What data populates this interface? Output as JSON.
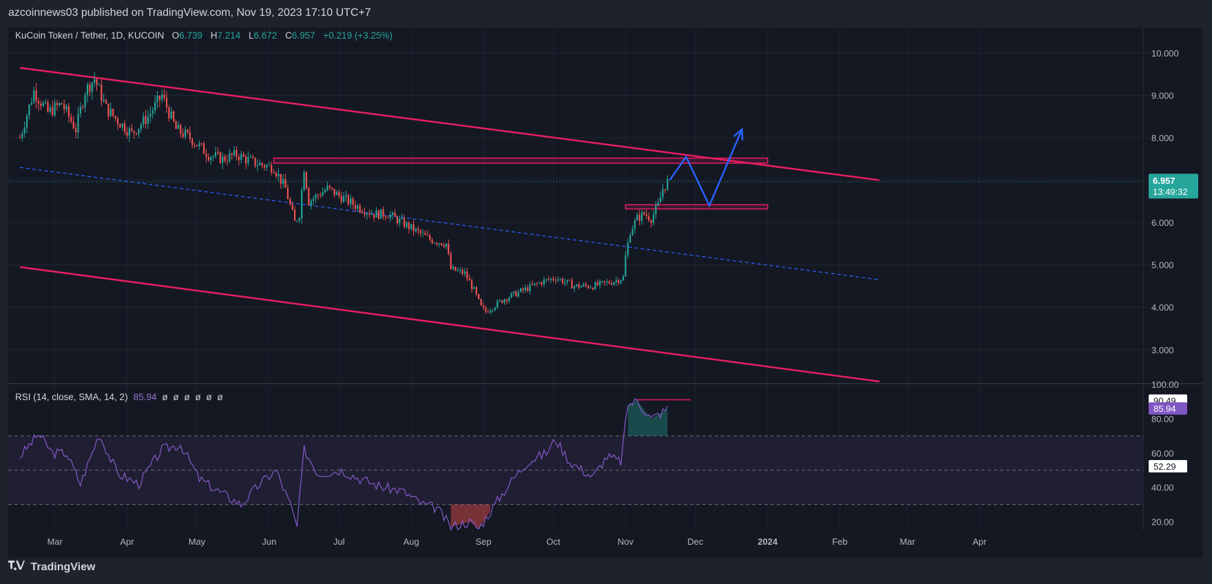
{
  "header": {
    "publisher": "azcoinnews03 published on TradingView.com, Nov 19, 2023 17:10 UTC+7"
  },
  "legend": {
    "symbol": "KuCoin Token / Tether, 1D, KUCOIN",
    "open_label": "O",
    "open": "6.739",
    "high_label": "H",
    "high": "7.214",
    "low_label": "L",
    "low": "6.672",
    "close_label": "C",
    "close": "6.957",
    "change": "+0.219 (+3.25%)"
  },
  "price_badge": {
    "price": "6.957",
    "countdown": "13:49:32"
  },
  "rsi": {
    "label": "RSI (14, close, SMA, 14, 2)",
    "value": "85.94",
    "nulls": "ø ø ø ø ø ø",
    "badges": [
      "90.49",
      "85.94",
      "52.29"
    ]
  },
  "footer": {
    "brand": "TradingView",
    "logo": "tradingview-logo-icon"
  },
  "colors": {
    "background": "#141823",
    "up": "#26a69a",
    "down": "#ef5350",
    "channel": "#e91e63",
    "mid_line": "#2962ff",
    "projection": "#2962ff",
    "rsi_line": "#7e57c2",
    "rsi_band": "#2a2440"
  },
  "chart_data": {
    "type": "candlestick",
    "price_axis": {
      "ticks": [
        "10.000",
        "9.000",
        "8.000",
        "7.000",
        "6.000",
        "5.000",
        "4.000",
        "3.000"
      ],
      "ylim": [
        2.2,
        10.6
      ]
    },
    "rsi_axis": {
      "ticks": [
        "100.00",
        "80.00",
        "60.00",
        "40.00",
        "20.00"
      ],
      "levels": [
        70,
        50,
        30
      ],
      "ylim": [
        15,
        100
      ]
    },
    "x_labels": [
      "Mar",
      "Apr",
      "May",
      "Jun",
      "Jul",
      "Aug",
      "Sep",
      "Oct",
      "Nov",
      "Dec",
      "2024",
      "Feb",
      "Mar",
      "Apr"
    ],
    "price_path": [
      [
        "2023-02-14",
        8.0
      ],
      [
        "2023-02-20",
        9.1
      ],
      [
        "2023-02-26",
        8.6
      ],
      [
        "2023-03-04",
        8.8
      ],
      [
        "2023-03-10",
        8.2
      ],
      [
        "2023-03-14",
        9.1
      ],
      [
        "2023-03-18",
        9.4
      ],
      [
        "2023-03-23",
        8.7
      ],
      [
        "2023-03-28",
        8.4
      ],
      [
        "2023-04-03",
        8.1
      ],
      [
        "2023-04-10",
        8.5
      ],
      [
        "2023-04-16",
        9.0
      ],
      [
        "2023-04-22",
        8.2
      ],
      [
        "2023-04-28",
        8.0
      ],
      [
        "2023-05-06",
        7.6
      ],
      [
        "2023-05-12",
        7.5
      ],
      [
        "2023-05-18",
        7.6
      ],
      [
        "2023-05-26",
        7.4
      ],
      [
        "2023-06-03",
        7.3
      ],
      [
        "2023-06-08",
        6.8
      ],
      [
        "2023-06-12",
        6.0
      ],
      [
        "2023-06-14",
        6.2
      ],
      [
        "2023-06-16",
        7.3
      ],
      [
        "2023-06-18",
        6.5
      ],
      [
        "2023-06-26",
        6.8
      ],
      [
        "2023-07-02",
        6.6
      ],
      [
        "2023-07-08",
        6.4
      ],
      [
        "2023-07-16",
        6.2
      ],
      [
        "2023-07-22",
        6.2
      ],
      [
        "2023-07-28",
        6.0
      ],
      [
        "2023-08-03",
        5.8
      ],
      [
        "2023-08-09",
        5.6
      ],
      [
        "2023-08-16",
        5.5
      ],
      [
        "2023-08-18",
        4.9
      ],
      [
        "2023-08-24",
        4.8
      ],
      [
        "2023-08-28",
        4.4
      ],
      [
        "2023-08-31",
        4.0
      ],
      [
        "2023-09-02",
        3.9
      ],
      [
        "2023-09-10",
        4.2
      ],
      [
        "2023-09-18",
        4.4
      ],
      [
        "2023-09-26",
        4.6
      ],
      [
        "2023-10-02",
        4.7
      ],
      [
        "2023-10-10",
        4.5
      ],
      [
        "2023-10-18",
        4.5
      ],
      [
        "2023-10-26",
        4.6
      ],
      [
        "2023-10-31",
        4.7
      ],
      [
        "2023-11-01",
        5.2
      ],
      [
        "2023-11-03",
        5.8
      ],
      [
        "2023-11-06",
        6.1
      ],
      [
        "2023-11-09",
        6.2
      ],
      [
        "2023-11-12",
        6.1
      ],
      [
        "2023-11-15",
        6.4
      ],
      [
        "2023-11-17",
        6.8
      ],
      [
        "2023-11-19",
        6.957
      ]
    ],
    "channel_upper": [
      [
        "2023-02-14",
        9.65
      ],
      [
        "2024-02-18",
        7.0
      ]
    ],
    "channel_lower": [
      [
        "2023-02-14",
        4.95
      ],
      [
        "2024-02-18",
        2.25
      ]
    ],
    "channel_mid": [
      [
        "2023-02-14",
        7.3
      ],
      [
        "2024-02-18",
        4.65
      ]
    ],
    "resistance_zone": {
      "x": [
        "2023-06-03",
        "2024-01-01"
      ],
      "y": [
        7.4,
        7.52
      ]
    },
    "support_zone": {
      "x": [
        "2023-11-01",
        "2024-01-01"
      ],
      "y": [
        6.32,
        6.42
      ]
    },
    "projection": [
      [
        "2023-11-20",
        7.0
      ],
      [
        "2023-11-27",
        7.55
      ],
      [
        "2023-12-07",
        6.4
      ],
      [
        "2023-12-21",
        8.2
      ]
    ],
    "rsi_path": [
      [
        "2023-02-14",
        58
      ],
      [
        "2023-02-22",
        71
      ],
      [
        "2023-02-28",
        60
      ],
      [
        "2023-03-06",
        60
      ],
      [
        "2023-03-12",
        42
      ],
      [
        "2023-03-20",
        71
      ],
      [
        "2023-03-28",
        48
      ],
      [
        "2023-04-06",
        42
      ],
      [
        "2023-04-16",
        62
      ],
      [
        "2023-04-24",
        65
      ],
      [
        "2023-05-02",
        45
      ],
      [
        "2023-05-10",
        38
      ],
      [
        "2023-05-20",
        30
      ],
      [
        "2023-05-28",
        42
      ],
      [
        "2023-06-04",
        50
      ],
      [
        "2023-06-10",
        30
      ],
      [
        "2023-06-13",
        17
      ],
      [
        "2023-06-16",
        62
      ],
      [
        "2023-06-22",
        48
      ],
      [
        "2023-07-02",
        50
      ],
      [
        "2023-07-10",
        45
      ],
      [
        "2023-07-20",
        40
      ],
      [
        "2023-07-28",
        38
      ],
      [
        "2023-08-06",
        30
      ],
      [
        "2023-08-12",
        28
      ],
      [
        "2023-08-18",
        17
      ],
      [
        "2023-08-26",
        20
      ],
      [
        "2023-08-30",
        16
      ],
      [
        "2023-09-04",
        26
      ],
      [
        "2023-09-12",
        42
      ],
      [
        "2023-09-20",
        55
      ],
      [
        "2023-09-28",
        60
      ],
      [
        "2023-10-02",
        68
      ],
      [
        "2023-10-08",
        55
      ],
      [
        "2023-10-18",
        46
      ],
      [
        "2023-10-24",
        58
      ],
      [
        "2023-10-30",
        55
      ],
      [
        "2023-10-31",
        66
      ],
      [
        "2023-11-02",
        88
      ],
      [
        "2023-11-06",
        90.49
      ],
      [
        "2023-11-12",
        80
      ],
      [
        "2023-11-17",
        84
      ],
      [
        "2023-11-19",
        85.94
      ]
    ],
    "rsi_sma": 52.29,
    "rsi_divergence_line": {
      "x": [
        "2023-11-06",
        "2023-11-29"
      ],
      "y": 91
    }
  }
}
